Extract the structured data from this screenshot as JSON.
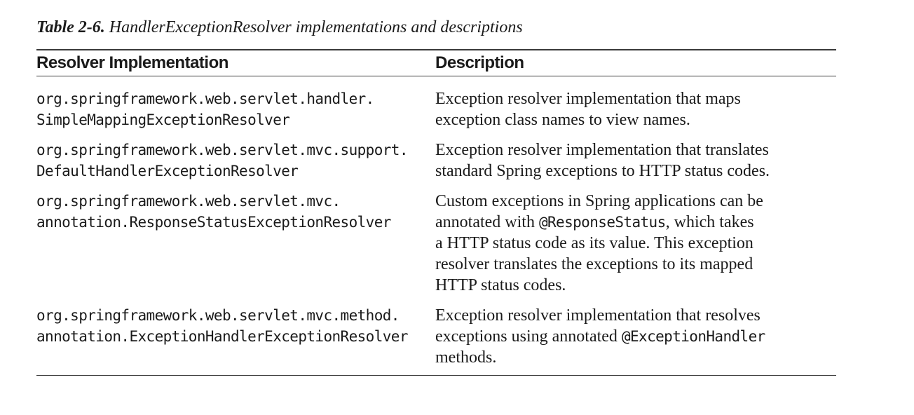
{
  "caption": {
    "number": "Table 2-6.",
    "title": "HandlerExceptionResolver implementations and descriptions"
  },
  "table": {
    "headers": {
      "implementation": "Resolver Implementation",
      "description": "Description"
    },
    "rows": [
      {
        "implementation": [
          "org.springframework.web.servlet.handler.",
          "SimpleMappingExceptionResolver"
        ],
        "description": [
          [
            {
              "t": "Exception resolver implementation that maps"
            }
          ],
          [
            {
              "t": "exception class names to view names."
            }
          ]
        ]
      },
      {
        "implementation": [
          "org.springframework.web.servlet.mvc.support.",
          "DefaultHandlerExceptionResolver"
        ],
        "description": [
          [
            {
              "t": "Exception resolver implementation that translates"
            }
          ],
          [
            {
              "t": "standard Spring exceptions to HTTP status codes."
            }
          ]
        ]
      },
      {
        "implementation": [
          "org.springframework.web.servlet.mvc.",
          "annotation.ResponseStatusExceptionResolver"
        ],
        "description": [
          [
            {
              "t": "Custom exceptions in Spring applications can be"
            }
          ],
          [
            {
              "t": "annotated with "
            },
            {
              "t": "@ResponseStatus",
              "code": true
            },
            {
              "t": ", which takes"
            }
          ],
          [
            {
              "t": "a HTTP status code as its value. This exception"
            }
          ],
          [
            {
              "t": "resolver translates the exceptions to its mapped"
            }
          ],
          [
            {
              "t": "HTTP status codes."
            }
          ]
        ]
      },
      {
        "implementation": [
          "org.springframework.web.servlet.mvc.method.",
          "annotation.ExceptionHandlerExceptionResolver"
        ],
        "description": [
          [
            {
              "t": "Exception resolver implementation that resolves"
            }
          ],
          [
            {
              "t": "exceptions using annotated "
            },
            {
              "t": "@ExceptionHandler",
              "code": true
            }
          ],
          [
            {
              "t": "methods."
            }
          ]
        ]
      }
    ]
  }
}
